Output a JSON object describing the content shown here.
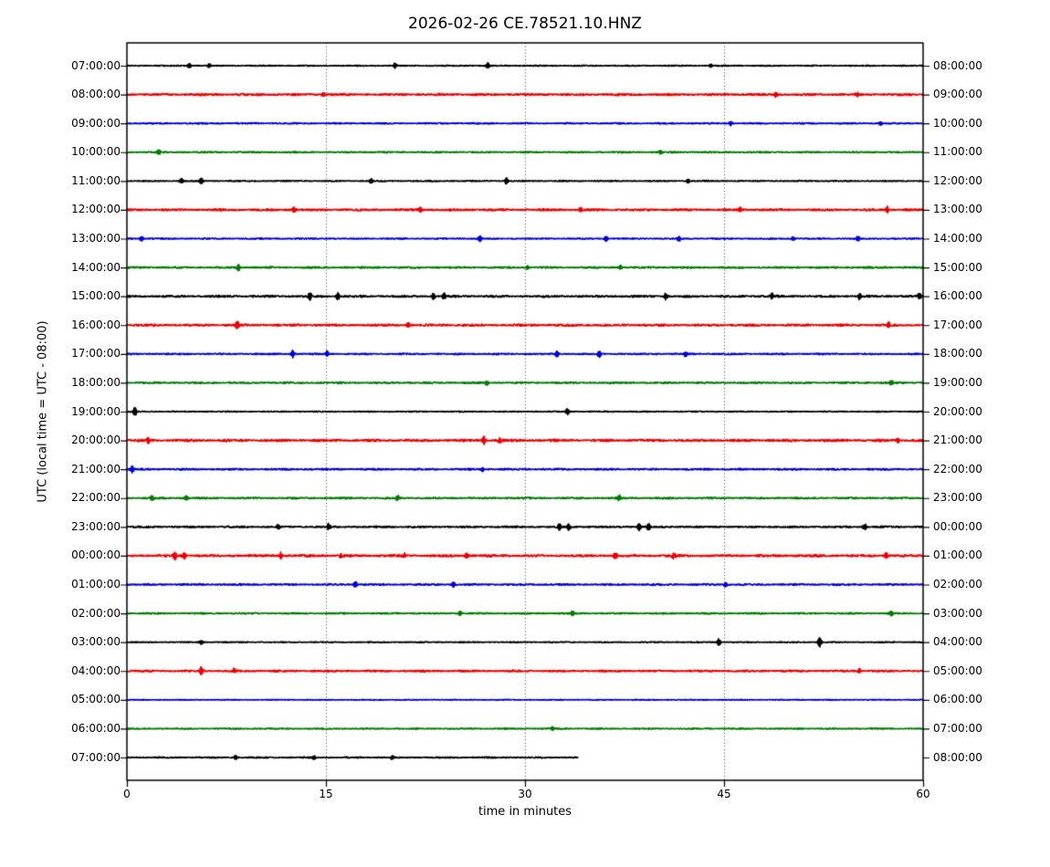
{
  "title": "2026-02-26 CE.78521.10.HNZ",
  "xlabel": "time in minutes",
  "ylabel": "UTC (local time = UTC - 08:00)",
  "chart_data": {
    "type": "line",
    "subtype": "helicorder_dayplot",
    "title": "2026-02-26 CE.78521.10.HNZ",
    "xlabel": "time in minutes",
    "ylabel": "UTC (local time = UTC - 08:00)",
    "x_axis": {
      "min": 0,
      "max": 60,
      "tick_labels": [
        "0",
        "15",
        "30",
        "45",
        "60"
      ],
      "tick_values": [
        0,
        15,
        30,
        45,
        60
      ],
      "gridlines_at": [
        15,
        30,
        45
      ],
      "grid_style": "dotted"
    },
    "minutes_per_row": 60,
    "palette": {
      "black": "#000000",
      "red": "#ee0000",
      "blue": "#0000dd",
      "green": "#007c00",
      "axis": "#000000",
      "grid": "#222222"
    },
    "legend": "none",
    "rows": [
      {
        "utc_start": "07:00:00",
        "utc_end": "08:00:00",
        "color": "black",
        "noise": 0.45,
        "end_minute": 60,
        "events": [
          [
            4.7,
            1.6
          ],
          [
            6.2,
            1.2
          ],
          [
            20.2,
            1.4
          ],
          [
            27.2,
            1.6
          ],
          [
            44.0,
            0.9
          ]
        ]
      },
      {
        "utc_start": "08:00:00",
        "utc_end": "09:00:00",
        "color": "red",
        "noise": 0.85,
        "end_minute": 60,
        "events": [
          [
            14.8,
            1.4
          ],
          [
            48.9,
            1.5
          ],
          [
            55.0,
            1.2
          ]
        ]
      },
      {
        "utc_start": "09:00:00",
        "utc_end": "10:00:00",
        "color": "blue",
        "noise": 0.55,
        "end_minute": 60,
        "events": [
          [
            45.5,
            1.3
          ],
          [
            56.8,
            1.2
          ]
        ]
      },
      {
        "utc_start": "10:00:00",
        "utc_end": "11:00:00",
        "color": "green",
        "noise": 0.6,
        "end_minute": 60,
        "events": [
          [
            2.4,
            1.6
          ],
          [
            40.2,
            1.1
          ]
        ]
      },
      {
        "utc_start": "11:00:00",
        "utc_end": "12:00:00",
        "color": "black",
        "noise": 0.5,
        "end_minute": 60,
        "events": [
          [
            4.1,
            1.6
          ],
          [
            5.6,
            1.9
          ],
          [
            18.4,
            1.6
          ],
          [
            28.6,
            1.9
          ],
          [
            42.3,
            1.1
          ]
        ]
      },
      {
        "utc_start": "12:00:00",
        "utc_end": "13:00:00",
        "color": "red",
        "noise": 0.85,
        "end_minute": 60,
        "events": [
          [
            12.6,
            1.9
          ],
          [
            22.1,
            1.6
          ],
          [
            34.2,
            1.6
          ],
          [
            46.2,
            1.6
          ],
          [
            57.3,
            1.9
          ]
        ]
      },
      {
        "utc_start": "13:00:00",
        "utc_end": "14:00:00",
        "color": "blue",
        "noise": 0.55,
        "end_minute": 60,
        "events": [
          [
            1.1,
            1.6
          ],
          [
            26.6,
            1.9
          ],
          [
            36.1,
            1.6
          ],
          [
            41.6,
            1.6
          ],
          [
            50.2,
            1.4
          ],
          [
            55.1,
            1.6
          ]
        ]
      },
      {
        "utc_start": "14:00:00",
        "utc_end": "15:00:00",
        "color": "green",
        "noise": 0.7,
        "end_minute": 60,
        "events": [
          [
            8.4,
            2.1
          ],
          [
            30.2,
            1.3
          ],
          [
            37.2,
            1.3
          ]
        ]
      },
      {
        "utc_start": "15:00:00",
        "utc_end": "16:00:00",
        "color": "black",
        "noise": 0.8,
        "end_minute": 60,
        "events": [
          [
            13.8,
            2.3
          ],
          [
            15.9,
            2.3
          ],
          [
            23.1,
            1.9
          ],
          [
            23.9,
            1.9
          ],
          [
            40.6,
            1.9
          ],
          [
            48.6,
            1.6
          ],
          [
            55.2,
            1.9
          ],
          [
            59.7,
            2.1
          ]
        ]
      },
      {
        "utc_start": "16:00:00",
        "utc_end": "17:00:00",
        "color": "red",
        "noise": 0.85,
        "end_minute": 60,
        "events": [
          [
            8.3,
            2.6
          ],
          [
            21.2,
            1.4
          ],
          [
            57.4,
            1.6
          ]
        ]
      },
      {
        "utc_start": "17:00:00",
        "utc_end": "18:00:00",
        "color": "blue",
        "noise": 0.6,
        "end_minute": 60,
        "events": [
          [
            12.5,
            2.1
          ],
          [
            15.1,
            1.9
          ],
          [
            32.4,
            2.1
          ],
          [
            35.6,
            1.9
          ],
          [
            42.1,
            1.6
          ]
        ]
      },
      {
        "utc_start": "18:00:00",
        "utc_end": "19:00:00",
        "color": "green",
        "noise": 0.7,
        "end_minute": 60,
        "events": [
          [
            27.1,
            1.6
          ],
          [
            57.6,
            1.6
          ]
        ]
      },
      {
        "utc_start": "19:00:00",
        "utc_end": "20:00:00",
        "color": "black",
        "noise": 0.45,
        "end_minute": 60,
        "events": [
          [
            0.6,
            2.9
          ],
          [
            33.2,
            1.9
          ]
        ]
      },
      {
        "utc_start": "20:00:00",
        "utc_end": "21:00:00",
        "color": "red",
        "noise": 0.95,
        "end_minute": 60,
        "events": [
          [
            1.6,
            1.6
          ],
          [
            26.9,
            2.3
          ],
          [
            28.1,
            2.1
          ],
          [
            58.1,
            1.6
          ]
        ]
      },
      {
        "utc_start": "21:00:00",
        "utc_end": "22:00:00",
        "color": "blue",
        "noise": 0.7,
        "end_minute": 60,
        "events": [
          [
            0.4,
            2.1
          ],
          [
            26.8,
            1.4
          ]
        ]
      },
      {
        "utc_start": "22:00:00",
        "utc_end": "23:00:00",
        "color": "green",
        "noise": 0.7,
        "end_minute": 60,
        "events": [
          [
            1.9,
            1.6
          ],
          [
            4.5,
            1.4
          ],
          [
            20.4,
            1.6
          ],
          [
            37.1,
            1.6
          ]
        ]
      },
      {
        "utc_start": "23:00:00",
        "utc_end": "00:00:00",
        "color": "black",
        "noise": 0.7,
        "end_minute": 60,
        "events": [
          [
            11.4,
            1.6
          ],
          [
            15.2,
            1.9
          ],
          [
            32.6,
            1.9
          ],
          [
            33.3,
            1.9
          ],
          [
            38.6,
            2.3
          ],
          [
            39.3,
            2.3
          ],
          [
            55.6,
            1.9
          ]
        ]
      },
      {
        "utc_start": "00:00:00",
        "utc_end": "01:00:00",
        "color": "red",
        "noise": 0.95,
        "end_minute": 60,
        "events": [
          [
            3.6,
            2.3
          ],
          [
            4.3,
            2.1
          ],
          [
            11.6,
            1.9
          ],
          [
            16.1,
            1.6
          ],
          [
            20.9,
            1.6
          ],
          [
            25.6,
            1.9
          ],
          [
            36.8,
            2.1
          ],
          [
            41.2,
            1.6
          ],
          [
            57.2,
            1.9
          ]
        ]
      },
      {
        "utc_start": "01:00:00",
        "utc_end": "02:00:00",
        "color": "blue",
        "noise": 0.7,
        "end_minute": 60,
        "events": [
          [
            17.2,
            1.9
          ],
          [
            24.6,
            1.6
          ],
          [
            45.1,
            1.4
          ]
        ]
      },
      {
        "utc_start": "02:00:00",
        "utc_end": "03:00:00",
        "color": "green",
        "noise": 0.6,
        "end_minute": 60,
        "events": [
          [
            25.1,
            1.6
          ],
          [
            33.6,
            1.6
          ],
          [
            57.6,
            1.6
          ]
        ]
      },
      {
        "utc_start": "03:00:00",
        "utc_end": "04:00:00",
        "color": "black",
        "noise": 0.45,
        "end_minute": 60,
        "events": [
          [
            5.6,
            1.6
          ],
          [
            44.6,
            2.3
          ],
          [
            52.2,
            3.1
          ]
        ]
      },
      {
        "utc_start": "04:00:00",
        "utc_end": "05:00:00",
        "color": "red",
        "noise": 0.75,
        "end_minute": 60,
        "events": [
          [
            5.6,
            2.6
          ],
          [
            8.1,
            1.6
          ],
          [
            55.2,
            1.4
          ]
        ]
      },
      {
        "utc_start": "05:00:00",
        "utc_end": "06:00:00",
        "color": "blue",
        "noise": 0.35,
        "end_minute": 60,
        "events": []
      },
      {
        "utc_start": "06:00:00",
        "utc_end": "07:00:00",
        "color": "green",
        "noise": 0.55,
        "end_minute": 60,
        "events": [
          [
            32.1,
            1.1
          ]
        ]
      },
      {
        "utc_start": "07:00:00",
        "utc_end": "08:00:00",
        "color": "black",
        "noise": 0.55,
        "end_minute": 34,
        "events": [
          [
            8.2,
            1.3
          ],
          [
            14.1,
            1.3
          ],
          [
            20.0,
            1.1
          ]
        ]
      }
    ]
  }
}
